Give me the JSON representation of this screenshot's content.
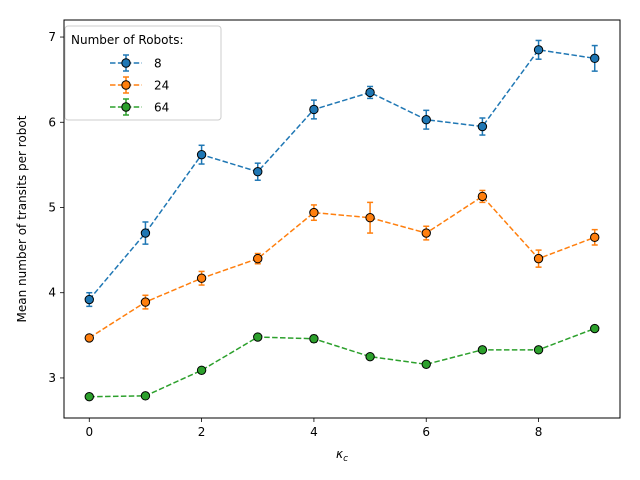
{
  "chart_data": {
    "type": "line",
    "xlabel": "κ",
    "xlabel_sub": "c",
    "ylabel": "Mean number of transits per robot",
    "xlim": [
      -0.45,
      9.45
    ],
    "ylim": [
      2.53,
      7.2
    ],
    "xticks": [
      0,
      2,
      4,
      6,
      8
    ],
    "yticks": [
      3,
      4,
      5,
      6,
      7
    ],
    "grid": false,
    "legend": {
      "title": "Number of Robots:",
      "placement": "top-left"
    },
    "x": [
      0,
      1,
      2,
      3,
      4,
      5,
      6,
      7,
      8,
      9
    ],
    "series": [
      {
        "name": "8",
        "color": "#1f77b4",
        "values": [
          3.92,
          4.7,
          5.62,
          5.42,
          6.15,
          6.35,
          6.03,
          5.95,
          6.85,
          6.75
        ],
        "errors": [
          0.08,
          0.13,
          0.11,
          0.1,
          0.11,
          0.07,
          0.11,
          0.1,
          0.11,
          0.15
        ]
      },
      {
        "name": "24",
        "color": "#ff7f0e",
        "values": [
          3.47,
          3.89,
          4.17,
          4.4,
          4.94,
          4.88,
          4.7,
          5.13,
          4.4,
          4.65
        ],
        "errors": [
          0.02,
          0.08,
          0.08,
          0.06,
          0.09,
          0.18,
          0.08,
          0.07,
          0.1,
          0.09
        ]
      },
      {
        "name": "64",
        "color": "#2ca02c",
        "values": [
          2.78,
          2.79,
          3.09,
          3.48,
          3.46,
          3.25,
          3.16,
          3.33,
          3.33,
          3.58
        ],
        "errors": [
          0.01,
          0.02,
          0.02,
          0.02,
          0.04,
          0.02,
          0.02,
          0.02,
          0.02,
          0.03
        ]
      }
    ]
  }
}
